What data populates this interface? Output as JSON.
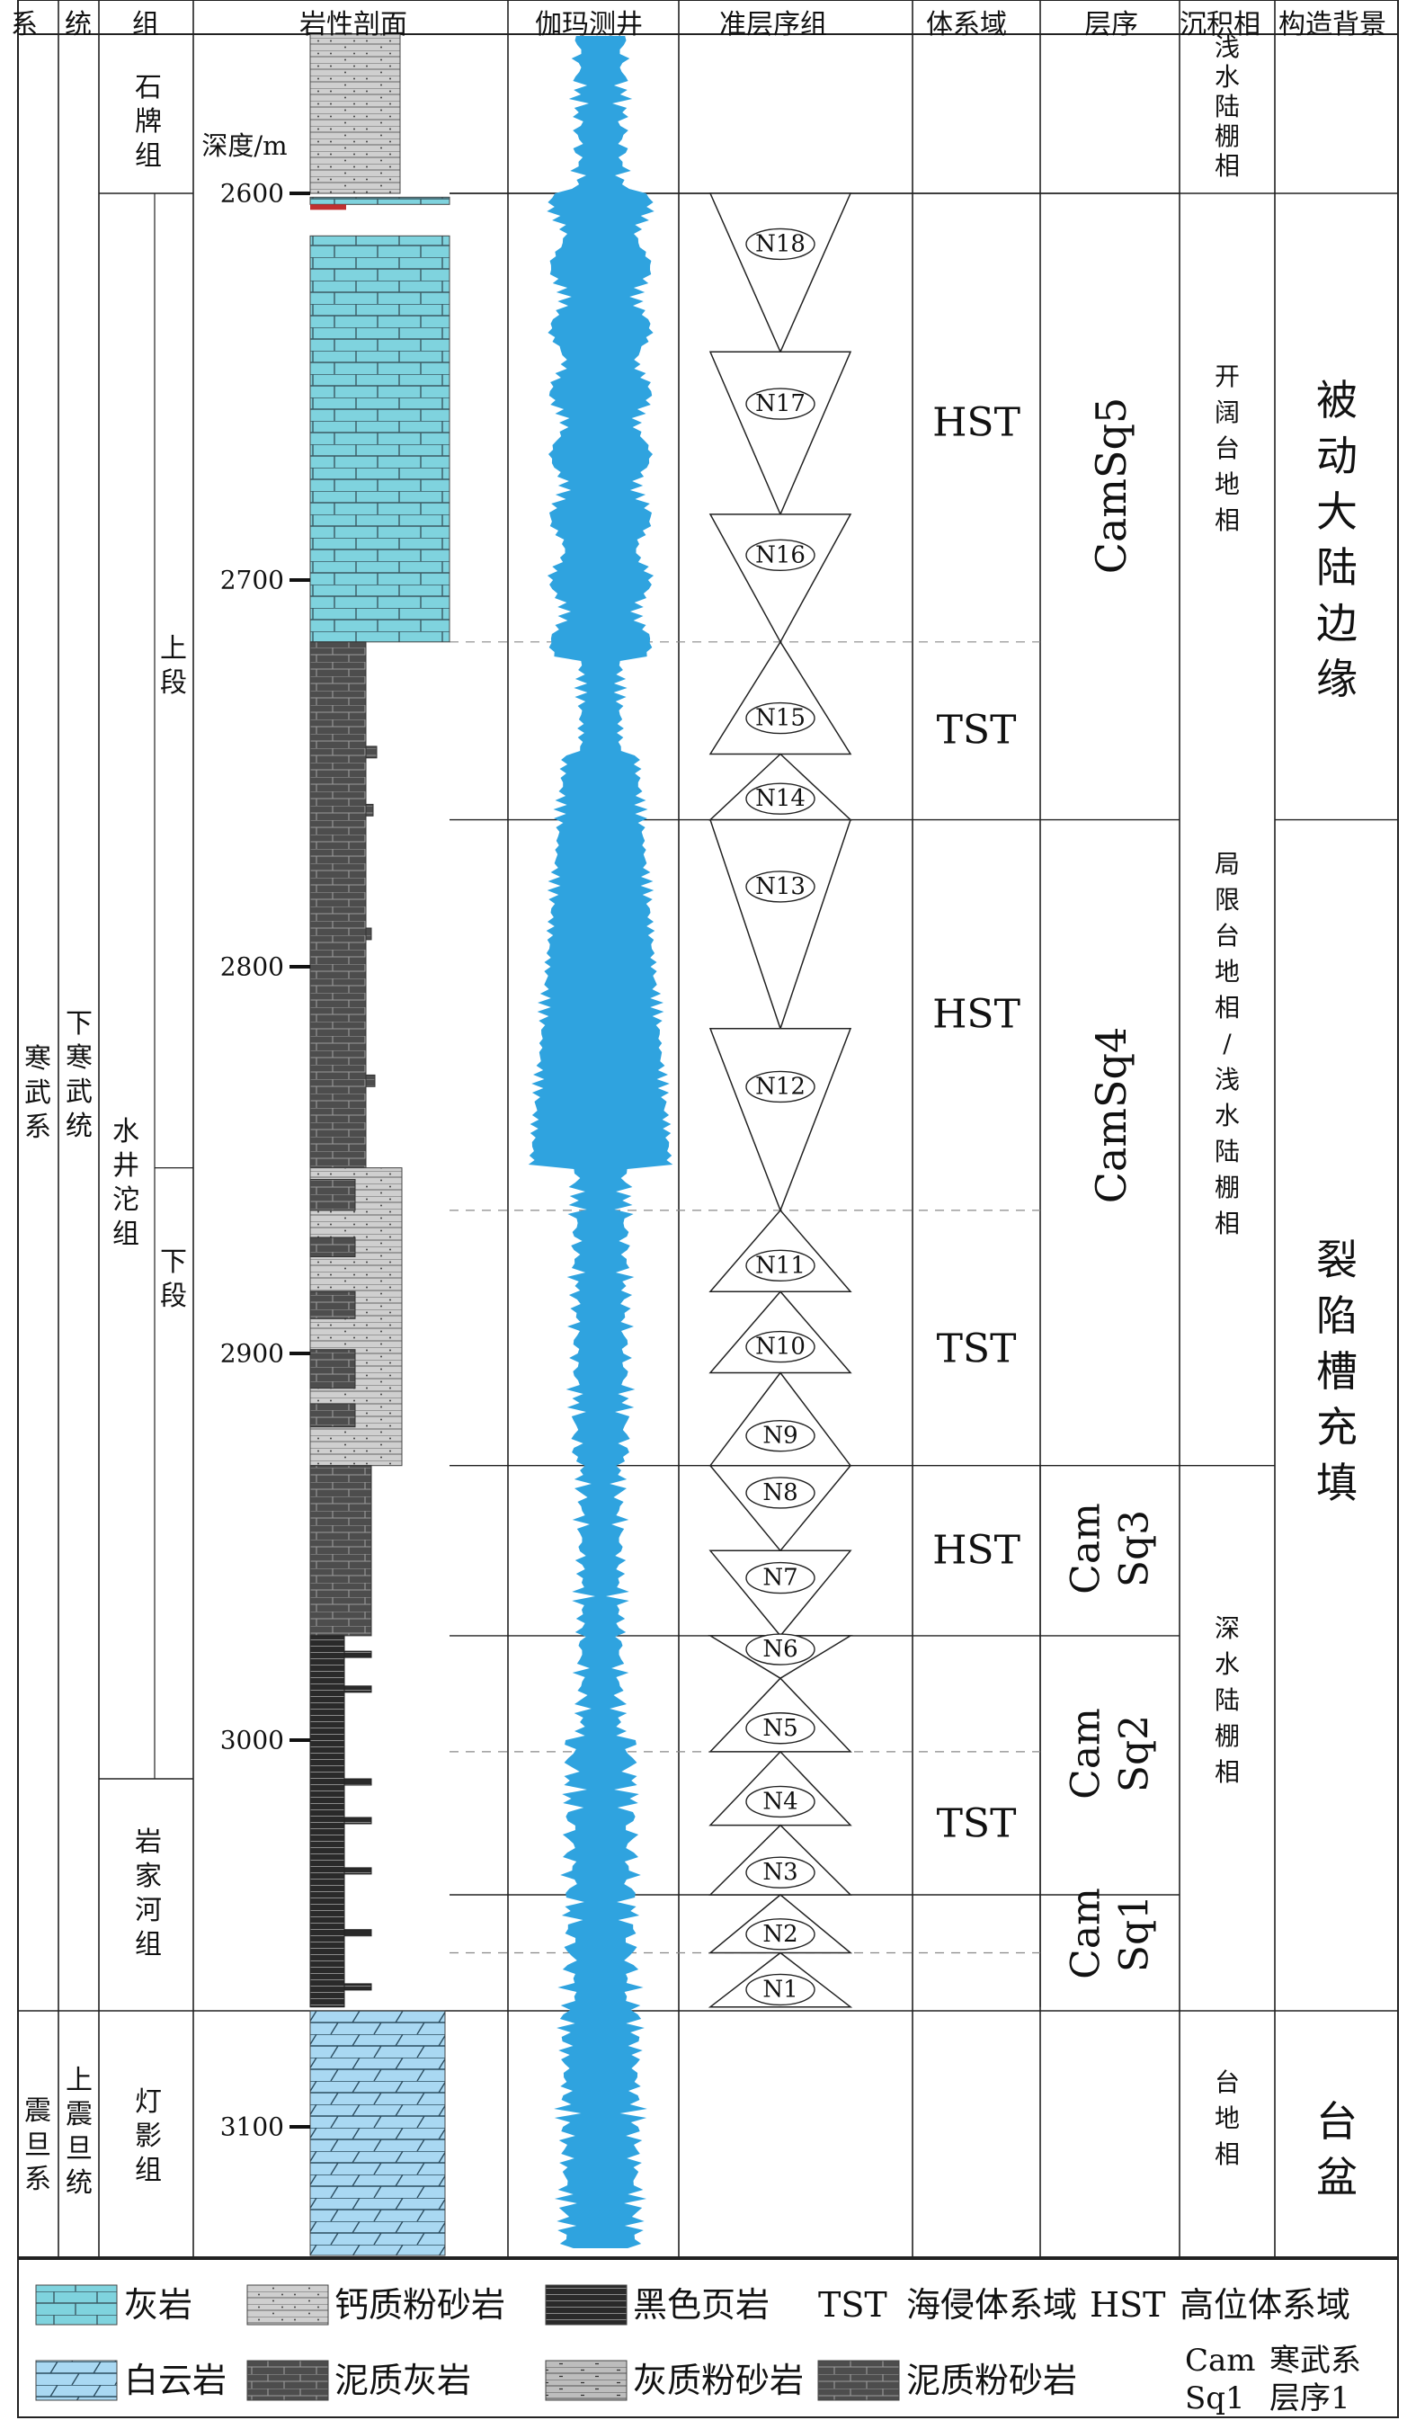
{
  "headers": {
    "system": "系",
    "series": "统",
    "formation": "组",
    "lithology": "岩性剖面",
    "gamma_log": "伽玛测井",
    "parasequence_set": "准层序组",
    "systems_tract": "体系域",
    "sequence": "层序",
    "facies": "沉积相",
    "tectonic": "构造背景"
  },
  "system": {
    "cambrian": "寒武系",
    "sinian": "震旦系"
  },
  "series": {
    "lower_cambrian": "下寒武统",
    "upper_sinian": "上震旦统"
  },
  "formation": {
    "shipai": "石牌组",
    "shuijingtuo": "水井沱组",
    "yanjiahe": "岩家河组",
    "dengying": "灯影组",
    "upper_member": "上段",
    "lower_member": "下段"
  },
  "depth": {
    "label": "深度/m",
    "ticks": [
      "2600",
      "2700",
      "2800",
      "2900",
      "3000",
      "3100"
    ]
  },
  "parasequences": [
    "N1",
    "N2",
    "N3",
    "N4",
    "N5",
    "N6",
    "N7",
    "N8",
    "N9",
    "N10",
    "N11",
    "N12",
    "N13",
    "N14",
    "N15",
    "N16",
    "N17",
    "N18"
  ],
  "systems_tracts": [
    "HST",
    "TST",
    "HST",
    "TST",
    "HST",
    "TST"
  ],
  "sequences": {
    "sq5": "CamSq5",
    "sq4": "CamSq4",
    "sq3_a": "Cam",
    "sq3_b": "Sq3",
    "sq2_a": "Cam",
    "sq2_b": "Sq2",
    "sq1_a": "Cam",
    "sq1_b": "Sq1"
  },
  "facies": {
    "shallow_shelf": "浅水陆棚相",
    "open_platform": "开阔台地相",
    "restricted": "局限台地相/浅水陆棚相",
    "deep_shelf": "深水陆棚相",
    "platform": "台地相"
  },
  "tectonic": {
    "passive": "被动大陆边缘",
    "rift": "裂陷槽充填",
    "basin": "台盆"
  },
  "legend": {
    "limestone": "灰岩",
    "calc_siltstone": "钙质粉砂岩",
    "black_shale": "黑色页岩",
    "tst_abbr": "TST",
    "tst_desc": "海侵体系域",
    "hst_abbr": "HST",
    "hst_desc": "高位体系域",
    "dolomite": "白云岩",
    "argillaceous_limestone": "泥质灰岩",
    "lime_siltstone": "灰质粉砂岩",
    "argillaceous_siltstone": "泥质粉砂岩",
    "cam_abbr": "Cam",
    "cam_desc": "寒武系",
    "sq_abbr": "Sq1",
    "sq_desc": "层序1"
  },
  "colors": {
    "limestone": "#7fd3de",
    "dolomite": "#a9d8f2",
    "gamma": "#2fa3df",
    "argillaceous_limestone": "#4d4d4d",
    "black_shale": "#2a2a2a",
    "siltstone": "#cfcfcf"
  }
}
